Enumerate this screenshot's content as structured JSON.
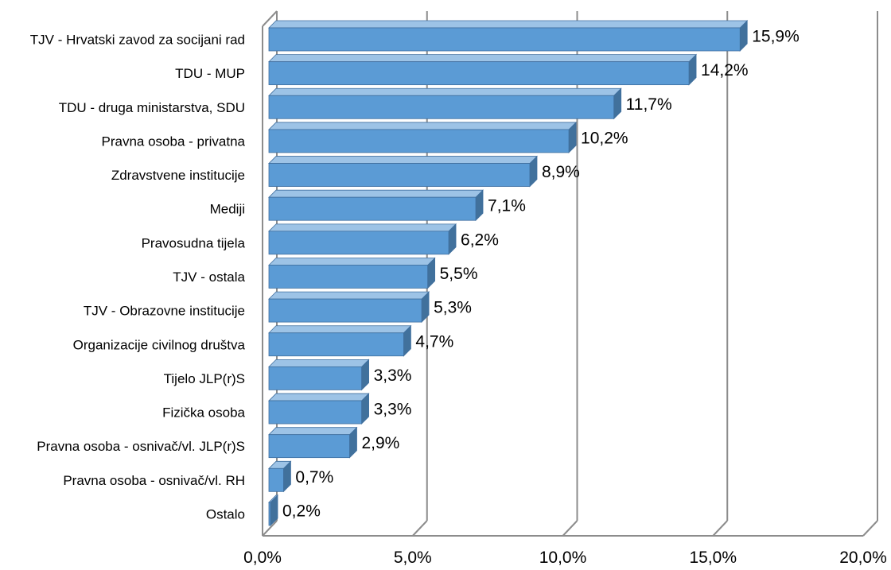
{
  "chart_data": {
    "type": "bar",
    "orientation": "horizontal",
    "three_d": true,
    "categories": [
      "TJV - Hrvatski zavod za socijani rad",
      "TDU - MUP",
      "TDU - druga ministarstva, SDU",
      "Pravna osoba  - privatna",
      "Zdravstvene institucije",
      "Mediji",
      "Pravosudna tijela",
      "TJV - ostala",
      "TJV - Obrazovne institucije",
      "Organizacije civilnog društva",
      "Tijelo JLP(r)S",
      "Fizička osoba",
      "Pravna osoba - osnivač/vl. JLP(r)S",
      "Pravna osoba - osnivač/vl. RH",
      "Ostalo"
    ],
    "values": [
      15.9,
      14.2,
      11.7,
      10.2,
      8.9,
      7.1,
      6.2,
      5.5,
      5.3,
      4.7,
      3.3,
      3.3,
      2.9,
      0.7,
      0.2
    ],
    "value_labels": [
      "15,9%",
      "14,2%",
      "11,7%",
      "10,2%",
      "8,9%",
      "7,1%",
      "6,2%",
      "5,5%",
      "5,3%",
      "4,7%",
      "3,3%",
      "3,3%",
      "2,9%",
      "0,7%",
      "0,2%"
    ],
    "xlim": [
      0,
      20
    ],
    "x_ticks": [
      0,
      5,
      10,
      15,
      20
    ],
    "x_tick_labels": [
      "0,0%",
      "5,0%",
      "10,0%",
      "15,0%",
      "20,0%"
    ],
    "grid": true,
    "legend": false,
    "title": "",
    "xlabel": "",
    "ylabel": "",
    "colors": {
      "bar_front": "#5b9bd5",
      "bar_top": "#9dc3e6",
      "bar_side": "#41719c",
      "bar_edge": "#3f6f9f",
      "grid": "#8c8c8c"
    }
  }
}
